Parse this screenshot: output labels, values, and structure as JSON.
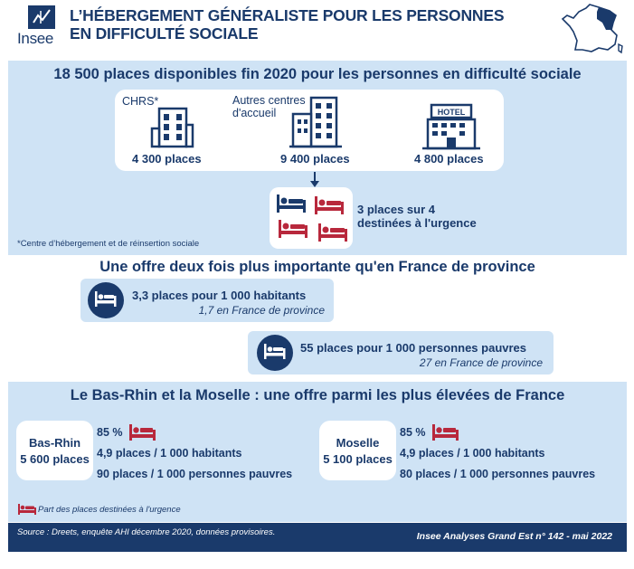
{
  "header": {
    "logo_text": "Insee",
    "title_line1": "L’HÉBERGEMENT GÉNÉRALISTE POUR LES PERSONNES",
    "title_line2": "EN DIFFICULTÉ SOCIALE"
  },
  "section1": {
    "title": "18 500 places disponibles fin 2020 pour les personnes en difficulté sociale",
    "items": [
      {
        "label": "CHRS*",
        "value": "4 300 places",
        "icon": "building-icon"
      },
      {
        "label_line1": "Autres centres",
        "label_line2": "d'accueil",
        "value": "9 400 places",
        "icon": "tall-building-icon"
      },
      {
        "label": "HOTEL",
        "value": "4 800 places",
        "icon": "hotel-icon"
      }
    ],
    "urgent_line1": "3 places sur 4",
    "urgent_line2": "destinées à l'urgence",
    "footnote": "*Centre d’hébergement et de réinsertion sociale"
  },
  "section2": {
    "title": "Une offre deux fois plus importante qu'en France de province",
    "offer1_main": "3,3 places pour 1 000 habitants",
    "offer1_sub": "1,7 en France de province",
    "offer2_main": "55 places pour 1 000 personnes pauvres",
    "offer2_sub": "27 en France de province"
  },
  "section3": {
    "title": "Le Bas-Rhin et la Moselle : une offre parmi les plus élevées de France",
    "depts": [
      {
        "name": "Bas-Rhin",
        "places": "5 600 places",
        "urgence": "85 %",
        "hab": "4,9 places / 1 000 habitants",
        "pauvres": "90 places / 1 000 personnes pauvres"
      },
      {
        "name": "Moselle",
        "places": "5 100 places",
        "urgence": "85 %",
        "hab": "4,9 places / 1 000 habitants",
        "pauvres": "80 places / 1 000 personnes pauvres"
      }
    ],
    "legend": "Part des places destinées à l'urgence"
  },
  "footer": {
    "source": "Source : Dreets, enquête AHI décembre 2020, données provisoires.",
    "reference": "Insee Analyses Grand Est n° 142 - mai 2022"
  },
  "colors": {
    "navy": "#1a3a6b",
    "red": "#b8283c",
    "light_blue": "#cfe3f5"
  }
}
